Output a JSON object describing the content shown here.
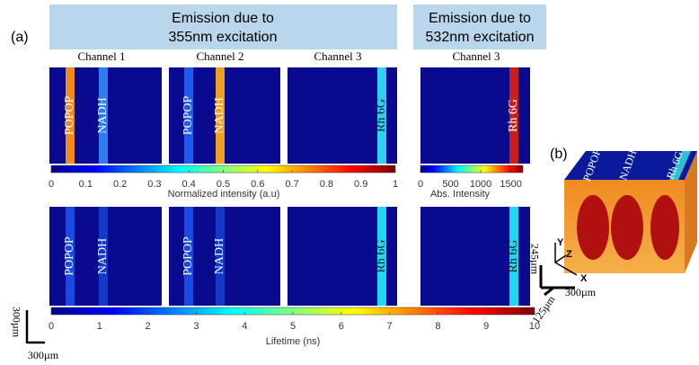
{
  "panel_a": {
    "label": "(a)",
    "groups": [
      {
        "line1": "Emission due to",
        "line2": "355nm excitation"
      },
      {
        "line1": "Emission due to",
        "line2": "532nm excitation"
      }
    ],
    "channels": [
      "Channel 1",
      "Channel 2",
      "Channel 3",
      "Channel 3"
    ],
    "top_row": [
      [
        "POPOP",
        "NADH"
      ],
      [
        "POPOP",
        "NADH"
      ],
      [
        "Rh 6G"
      ],
      [
        "Rh 6G"
      ]
    ],
    "bottom_row": [
      [
        "POPOP",
        "NADH"
      ],
      [
        "POPOP",
        "NADH"
      ],
      [
        "Rh 6G"
      ],
      [
        "Rh 6G"
      ]
    ],
    "colorbars": [
      {
        "label": "Normalized intensity (a.u)",
        "lim": [
          0,
          1
        ],
        "ticks": [
          0,
          0.1,
          0.2,
          0.3,
          0.4,
          0.5,
          0.6,
          0.7,
          0.8,
          0.9,
          1
        ]
      },
      {
        "label": "Abs. Intensity",
        "lim": [
          0,
          1700
        ],
        "ticks": [
          0,
          500,
          1000,
          1500
        ]
      },
      {
        "label": "Lifetime (ns)",
        "lim": [
          0,
          10
        ],
        "ticks": [
          0,
          1,
          2,
          3,
          4,
          5,
          6,
          7,
          8,
          9,
          10
        ]
      }
    ],
    "scale_bar": {
      "vertical": "300µm",
      "horizontal": "300µm"
    }
  },
  "panel_b": {
    "label": "(b)",
    "dyes": [
      "POPOP",
      "NADH",
      "Rh 6G"
    ],
    "axes": {
      "y": "Y",
      "z": "Z",
      "x": "X"
    },
    "dimensions": {
      "y": "245µm",
      "z": "125µm",
      "x": "300µm"
    }
  }
}
